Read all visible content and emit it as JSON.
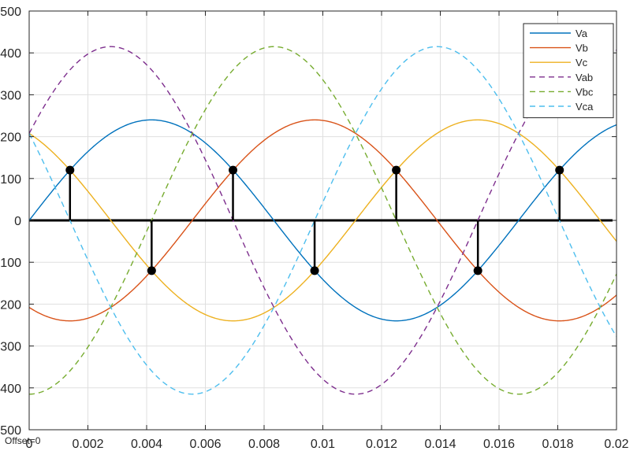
{
  "chart_data": {
    "type": "line",
    "title": "",
    "xlabel": "",
    "ylabel": "",
    "xlim": [
      0,
      0.02
    ],
    "ylim": [
      -500,
      500
    ],
    "grid": true,
    "legend_position": "top-right",
    "x_ticks": [
      "0",
      "0.002",
      "0.004",
      "0.006",
      "0.008",
      "0.01",
      "0.012",
      "0.014",
      "0.016",
      "0.018",
      "0.02"
    ],
    "y_ticks": [
      "500",
      "400",
      "300",
      "200",
      "100",
      "0",
      "100",
      "200",
      "300",
      "400",
      "500"
    ],
    "offset_label": "Offset=0",
    "series": [
      {
        "name": "Va",
        "amplitude": 240,
        "phase_deg": 0,
        "frequency_hz": 60,
        "style": "solid",
        "color": "#0072BD"
      },
      {
        "name": "Vb",
        "amplitude": 240,
        "phase_deg": -120,
        "frequency_hz": 60,
        "style": "solid",
        "color": "#D95319"
      },
      {
        "name": "Vc",
        "amplitude": 240,
        "phase_deg": 120,
        "frequency_hz": 60,
        "style": "solid",
        "color": "#EDB120"
      },
      {
        "name": "Vab",
        "amplitude": 415,
        "phase_deg": 30,
        "frequency_hz": 60,
        "style": "dashed",
        "color": "#7E2F8E"
      },
      {
        "name": "Vbc",
        "amplitude": 415,
        "phase_deg": -90,
        "frequency_hz": 60,
        "style": "dashed",
        "color": "#77AC30"
      },
      {
        "name": "Vca",
        "amplitude": 415,
        "phase_deg": 150,
        "frequency_hz": 60,
        "style": "dashed",
        "color": "#4DBEEE"
      }
    ],
    "markers": [
      {
        "x": 0.00139,
        "y": 120
      },
      {
        "x": 0.00417,
        "y": -120
      },
      {
        "x": 0.00694,
        "y": 120
      },
      {
        "x": 0.00972,
        "y": -120
      },
      {
        "x": 0.0125,
        "y": 120
      },
      {
        "x": 0.01528,
        "y": -120
      },
      {
        "x": 0.01806,
        "y": 120
      }
    ]
  }
}
